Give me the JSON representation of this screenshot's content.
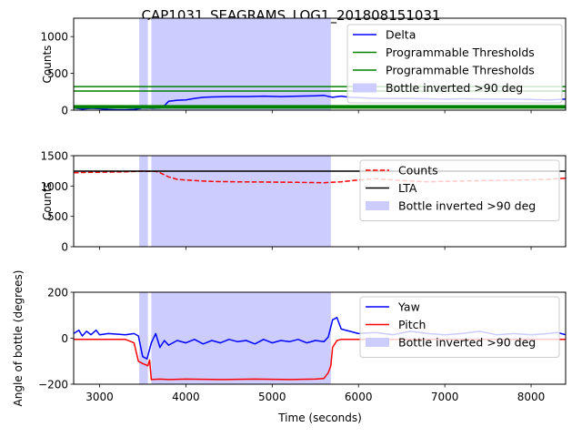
{
  "title": "CAP1031_SEAGRAMS_LOG1_201808151031",
  "xlabel": "Time (seconds)",
  "colors": {
    "blue": "#0000ff",
    "green": "#008000",
    "red": "#ff0000",
    "black": "#000000",
    "shade": "#ccccff"
  },
  "chart_data": [
    {
      "type": "line",
      "ylabel": "Counts",
      "xlim": [
        2700,
        8400
      ],
      "ylim": [
        0,
        1250
      ],
      "yticks": [
        "0",
        "500",
        "1000"
      ],
      "xticks": [
        3000,
        4000,
        5000,
        6000,
        7000,
        8000
      ],
      "shaded_spans": [
        [
          3460,
          3560
        ],
        [
          3600,
          5680
        ]
      ],
      "legend": {
        "placement": "top-right",
        "entries": [
          {
            "label": "Delta",
            "style": "line",
            "color": "#0000ff"
          },
          {
            "label": "Programmable Thresholds",
            "style": "line",
            "color": "#008000"
          },
          {
            "label": "Programmable Thresholds",
            "style": "line",
            "color": "#008000"
          },
          {
            "label": "Bottle inverted >90 deg",
            "style": "patch",
            "color": "#ccccff"
          }
        ]
      },
      "series": [
        {
          "name": "Delta",
          "color": "#0000ff",
          "dash": "solid",
          "x": [
            2700,
            2800,
            2900,
            3000,
            3100,
            3200,
            3300,
            3400,
            3500,
            3600,
            3700,
            3750,
            3800,
            3900,
            4000,
            4100,
            4200,
            4300,
            4500,
            4700,
            4900,
            5100,
            5300,
            5500,
            5600,
            5700,
            5800,
            5900,
            6000,
            6200,
            6500,
            6800,
            7000,
            7200,
            7500,
            7800,
            8000,
            8200,
            8400
          ],
          "y": [
            30,
            15,
            25,
            20,
            10,
            5,
            5,
            10,
            30,
            25,
            30,
            60,
            120,
            135,
            140,
            160,
            175,
            180,
            185,
            185,
            190,
            185,
            190,
            195,
            200,
            175,
            190,
            175,
            170,
            160,
            160,
            155,
            150,
            155,
            150,
            150,
            145,
            140,
            150
          ]
        },
        {
          "name": "Programmable Thresholds",
          "color": "#008000",
          "dash": "solid",
          "x": [
            2700,
            8400
          ],
          "y": [
            320,
            320
          ]
        },
        {
          "name": "Programmable Thresholds",
          "color": "#008000",
          "dash": "solid",
          "x": [
            2700,
            8400
          ],
          "y": [
            260,
            260
          ]
        },
        {
          "name": "Programmable Thresholds",
          "color": "#008000",
          "dash": "solid",
          "width": 4,
          "x": [
            2700,
            8400
          ],
          "y": [
            45,
            45
          ]
        }
      ]
    },
    {
      "type": "line",
      "ylabel": "Counts",
      "xlim": [
        2700,
        8400
      ],
      "ylim": [
        0,
        1500
      ],
      "yticks": [
        "0",
        "500",
        "1000",
        "1500"
      ],
      "xticks": [
        3000,
        4000,
        5000,
        6000,
        7000,
        8000
      ],
      "shaded_spans": [
        [
          3460,
          3560
        ],
        [
          3600,
          5680
        ]
      ],
      "legend": {
        "placement": "right",
        "entries": [
          {
            "label": "Counts",
            "style": "dashed",
            "color": "#ff0000"
          },
          {
            "label": "LTA",
            "style": "line",
            "color": "#000000"
          },
          {
            "label": "Bottle inverted >90 deg",
            "style": "patch",
            "color": "#ccccff"
          }
        ]
      },
      "series": [
        {
          "name": "Counts",
          "color": "#ff0000",
          "dash": "dashed",
          "x": [
            2700,
            2900,
            3100,
            3300,
            3500,
            3650,
            3700,
            3800,
            3900,
            4100,
            4300,
            4600,
            5000,
            5300,
            5600,
            5800,
            6000,
            6200,
            6500,
            6800,
            7100,
            7500,
            7900,
            8200,
            8400
          ],
          "y": [
            1220,
            1225,
            1230,
            1235,
            1245,
            1240,
            1220,
            1150,
            1110,
            1090,
            1075,
            1070,
            1065,
            1060,
            1055,
            1070,
            1100,
            1120,
            1090,
            1070,
            1080,
            1090,
            1100,
            1110,
            1130
          ]
        },
        {
          "name": "LTA",
          "color": "#000000",
          "dash": "solid",
          "x": [
            2700,
            8400
          ],
          "y": [
            1245,
            1245
          ]
        }
      ]
    },
    {
      "type": "line",
      "ylabel": "Angle of bottle (degrees)",
      "xlim": [
        2700,
        8400
      ],
      "ylim": [
        -200,
        200
      ],
      "yticks": [
        "−200",
        "0",
        "200"
      ],
      "xticks": [
        3000,
        4000,
        5000,
        6000,
        7000,
        8000
      ],
      "xticklabels": [
        "3000",
        "4000",
        "5000",
        "6000",
        "7000",
        "8000"
      ],
      "shaded_spans": [
        [
          3460,
          3560
        ],
        [
          3600,
          5680
        ]
      ],
      "legend": {
        "placement": "right",
        "entries": [
          {
            "label": "Yaw",
            "style": "line",
            "color": "#0000ff"
          },
          {
            "label": "Pitch",
            "style": "line",
            "color": "#ff0000"
          },
          {
            "label": "Bottle inverted >90 deg",
            "style": "patch",
            "color": "#ccccff"
          }
        ]
      },
      "series": [
        {
          "name": "Yaw",
          "color": "#0000ff",
          "dash": "solid",
          "x": [
            2700,
            2760,
            2800,
            2850,
            2900,
            2960,
            3000,
            3100,
            3200,
            3300,
            3400,
            3450,
            3500,
            3550,
            3600,
            3650,
            3700,
            3750,
            3800,
            3900,
            4000,
            4100,
            4200,
            4300,
            4400,
            4500,
            4600,
            4700,
            4800,
            4900,
            5000,
            5100,
            5200,
            5300,
            5400,
            5500,
            5600,
            5650,
            5700,
            5750,
            5800,
            5900,
            6000,
            6200,
            6400,
            6600,
            6800,
            7000,
            7200,
            7400,
            7600,
            7800,
            8000,
            8200,
            8300,
            8400
          ],
          "y": [
            20,
            35,
            10,
            30,
            15,
            35,
            15,
            20,
            18,
            15,
            20,
            10,
            -80,
            -90,
            -20,
            20,
            -40,
            -10,
            -30,
            -10,
            -20,
            -5,
            -25,
            -10,
            -20,
            -5,
            -15,
            -10,
            -25,
            -5,
            -20,
            -10,
            -15,
            -5,
            -20,
            -10,
            -15,
            5,
            80,
            90,
            40,
            30,
            20,
            25,
            15,
            30,
            20,
            15,
            20,
            30,
            15,
            20,
            15,
            20,
            25,
            15
          ]
        },
        {
          "name": "Pitch",
          "color": "#ff0000",
          "dash": "solid",
          "x": [
            2700,
            2900,
            3100,
            3300,
            3400,
            3450,
            3500,
            3560,
            3580,
            3600,
            3700,
            3800,
            4000,
            4400,
            4800,
            5200,
            5500,
            5600,
            5650,
            5680,
            5700,
            5750,
            5800,
            6000,
            6400,
            7000,
            7600,
            8000,
            8400
          ],
          "y": [
            -5,
            -5,
            -5,
            -5,
            -20,
            -100,
            -110,
            -120,
            -95,
            -180,
            -178,
            -180,
            -178,
            -180,
            -178,
            -180,
            -178,
            -175,
            -150,
            -120,
            -40,
            -10,
            -5,
            -5,
            -5,
            -5,
            -5,
            -5,
            -5
          ]
        }
      ]
    }
  ]
}
